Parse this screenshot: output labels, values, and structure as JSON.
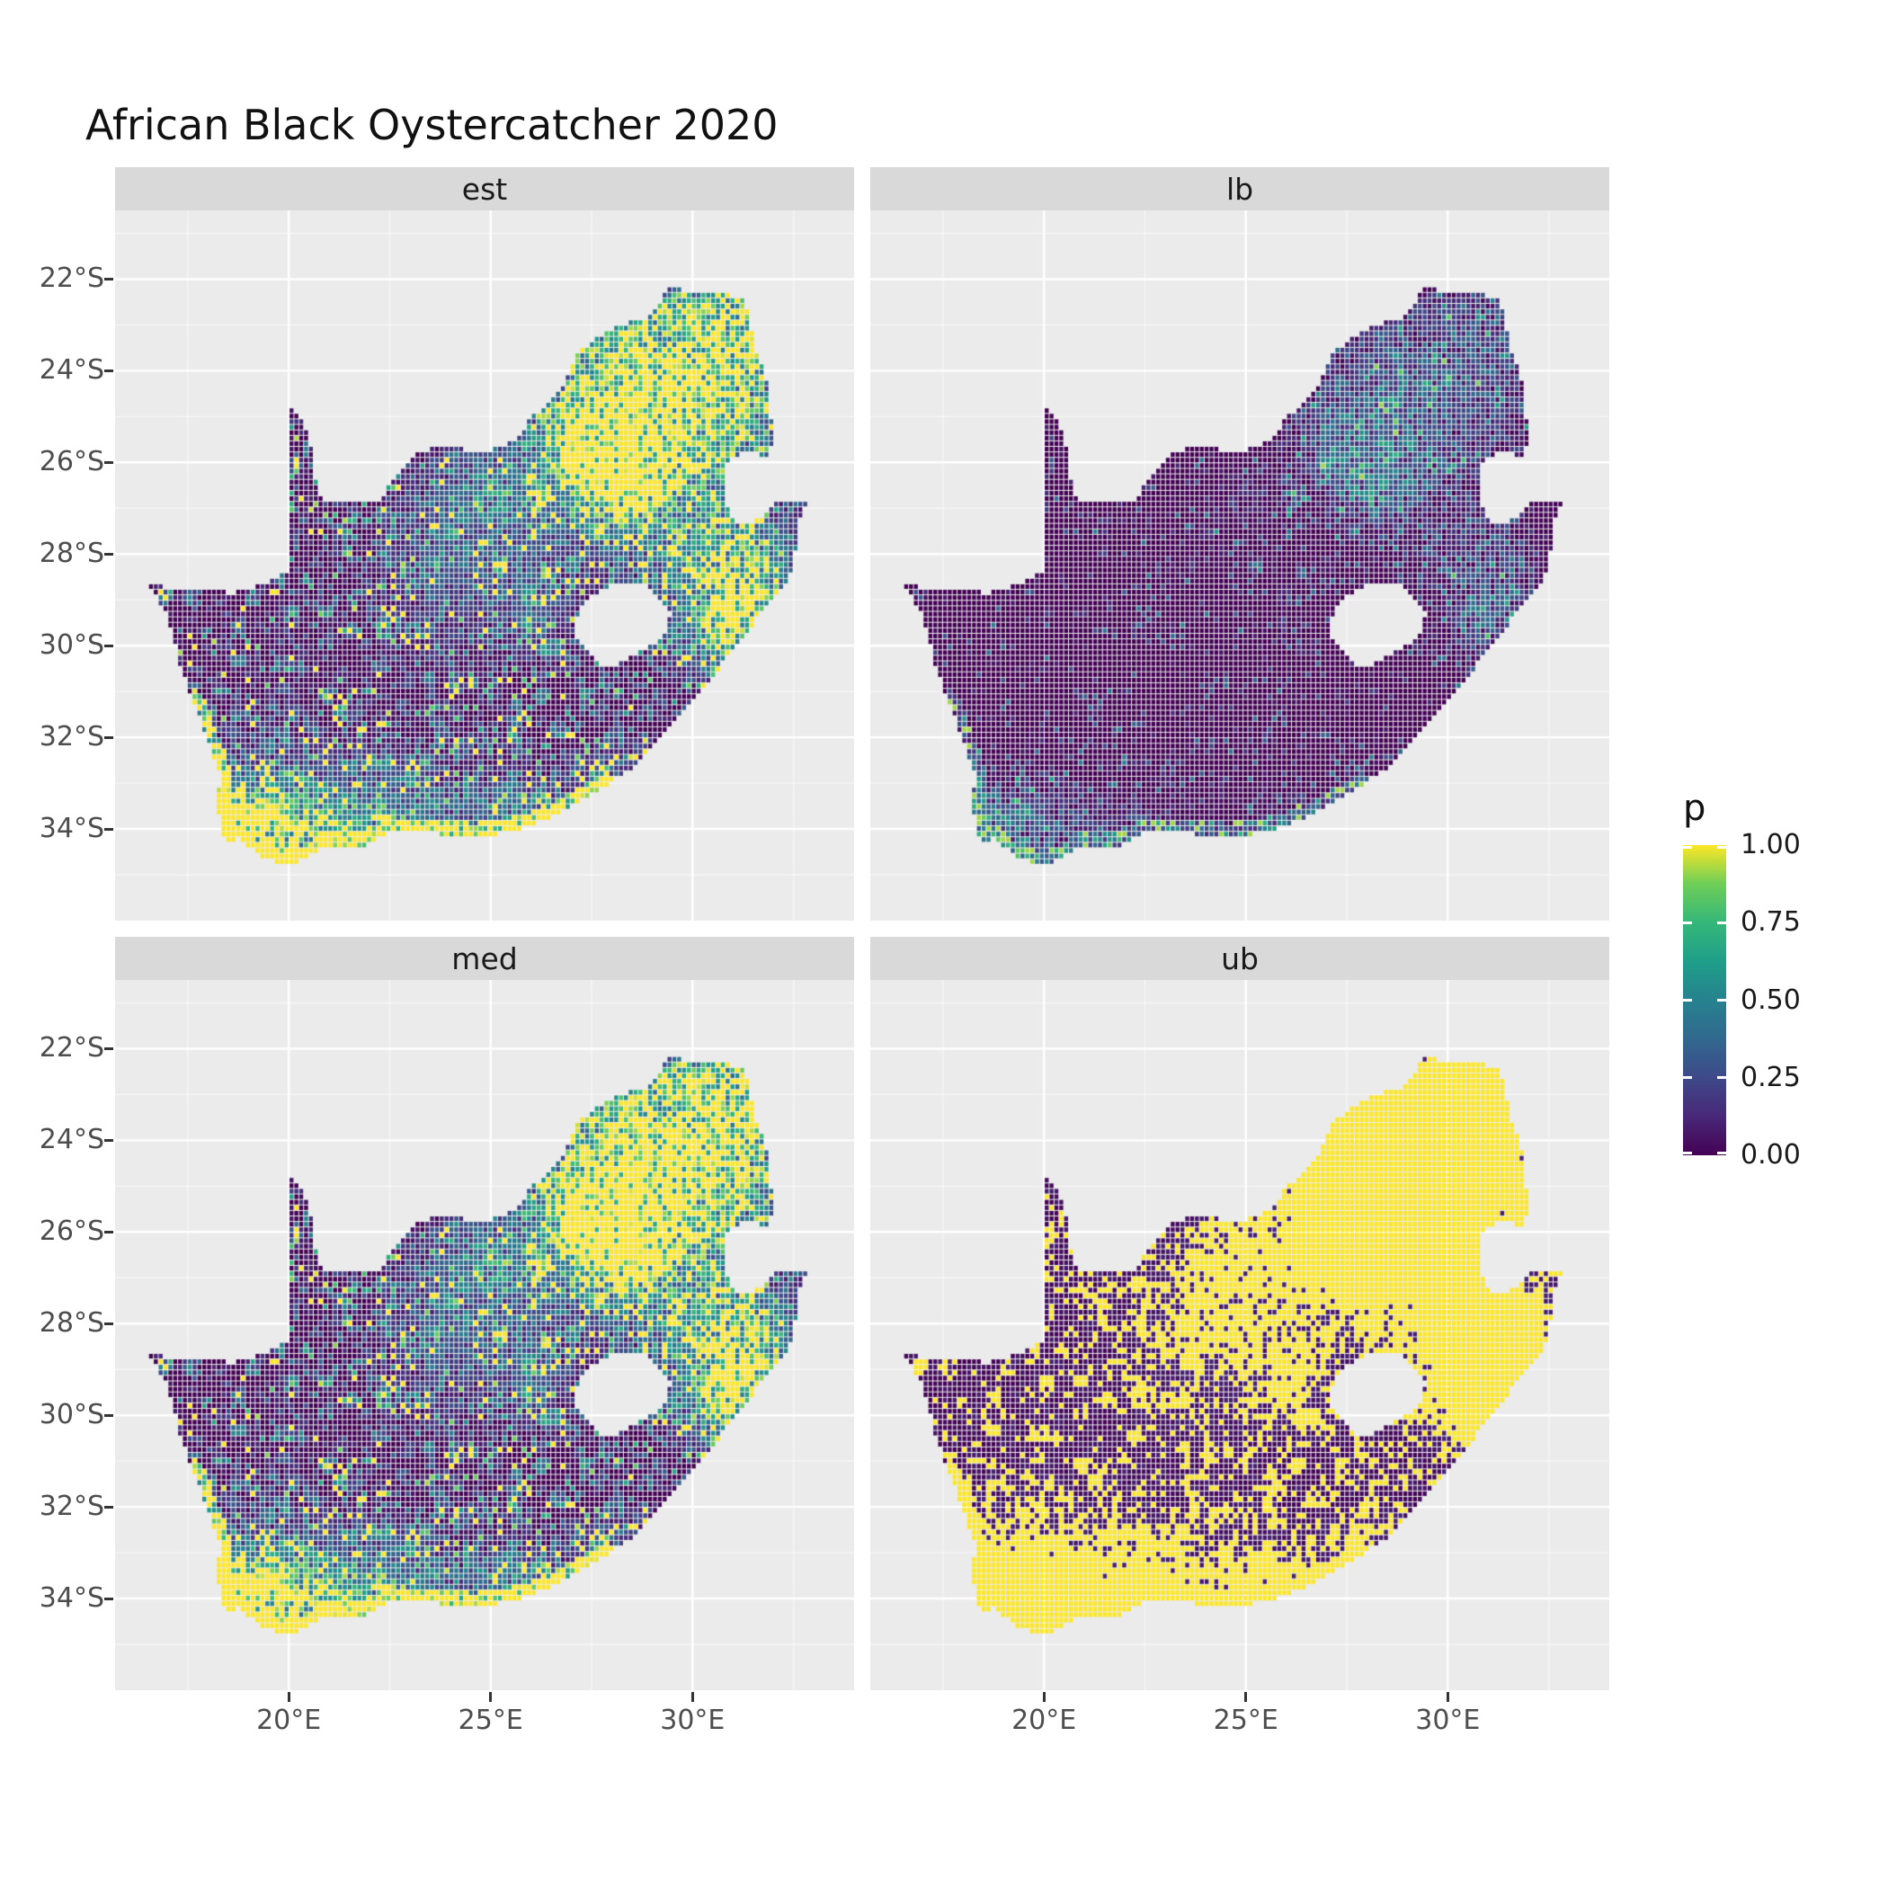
{
  "title": "African Black Oystercatcher 2020",
  "legend": {
    "title": "p",
    "entries": [
      {
        "value": 1.0,
        "label": "1.00"
      },
      {
        "value": 0.75,
        "label": "0.75"
      },
      {
        "value": 0.5,
        "label": "0.50"
      },
      {
        "value": 0.25,
        "label": "0.25"
      },
      {
        "value": 0.0,
        "label": "0.00"
      }
    ]
  },
  "chart_data": {
    "type": "heatmap",
    "title": "African Black Oystercatcher 2020",
    "map_region": "South Africa",
    "variable": "p",
    "facets": [
      {
        "id": "est",
        "label": "est"
      },
      {
        "id": "lb",
        "label": "lb"
      },
      {
        "id": "med",
        "label": "med"
      },
      {
        "id": "ub",
        "label": "ub"
      }
    ],
    "x_axis": {
      "range": [
        15.7,
        34.0
      ],
      "ticks": [
        {
          "value": 20,
          "label": "20°E"
        },
        {
          "value": 25,
          "label": "25°E"
        },
        {
          "value": 30,
          "label": "30°E"
        }
      ],
      "minor": [
        17.5,
        22.5,
        27.5,
        32.5
      ]
    },
    "y_axis": {
      "range": [
        20.5,
        36.0
      ],
      "ticks": [
        {
          "value": 22,
          "label": "22°S"
        },
        {
          "value": 24,
          "label": "24°S"
        },
        {
          "value": 26,
          "label": "26°S"
        },
        {
          "value": 28,
          "label": "28°S"
        },
        {
          "value": 30,
          "label": "30°S"
        },
        {
          "value": 32,
          "label": "32°S"
        },
        {
          "value": 34,
          "label": "34°S"
        }
      ],
      "minor": [
        21,
        23,
        25,
        27,
        29,
        31,
        33,
        35
      ]
    },
    "colorscale": {
      "name": "viridis",
      "domain": [
        0,
        1
      ],
      "stops": [
        {
          "t": 0.0,
          "c": "#440154"
        },
        {
          "t": 0.125,
          "c": "#482878"
        },
        {
          "t": 0.25,
          "c": "#3e4989"
        },
        {
          "t": 0.375,
          "c": "#31688e"
        },
        {
          "t": 0.5,
          "c": "#26828e"
        },
        {
          "t": 0.625,
          "c": "#1f9e89"
        },
        {
          "t": 0.75,
          "c": "#35b779"
        },
        {
          "t": 0.875,
          "c": "#6ece58"
        },
        {
          "t": 1.0,
          "c": "#fde725"
        }
      ]
    },
    "style": {
      "panel_bg": "#ebebeb",
      "grid": "#ffffff",
      "strip_bg": "#d9d9d9",
      "strip_text": "#1a1a1a",
      "axis_text": "#4d4d4d",
      "tick": "#333333"
    },
    "geo": {
      "south_africa": [
        [
          16.45,
          28.6
        ],
        [
          17.1,
          28.78
        ],
        [
          17.75,
          28.76
        ],
        [
          18.6,
          28.86
        ],
        [
          19.3,
          28.7
        ],
        [
          19.98,
          28.42
        ],
        [
          19.98,
          24.77
        ],
        [
          20.35,
          25.1
        ],
        [
          20.6,
          25.8
        ],
        [
          20.7,
          26.45
        ],
        [
          20.85,
          26.82
        ],
        [
          21.7,
          26.86
        ],
        [
          22.25,
          26.8
        ],
        [
          22.65,
          26.38
        ],
        [
          22.92,
          26.0
        ],
        [
          23.25,
          25.78
        ],
        [
          23.9,
          25.65
        ],
        [
          24.55,
          25.76
        ],
        [
          25.1,
          25.72
        ],
        [
          25.6,
          25.56
        ],
        [
          25.95,
          25.1
        ],
        [
          26.45,
          24.7
        ],
        [
          26.85,
          24.28
        ],
        [
          27.2,
          23.6
        ],
        [
          27.75,
          23.22
        ],
        [
          28.3,
          23.0
        ],
        [
          29.0,
          22.8
        ],
        [
          29.4,
          22.2
        ],
        [
          30.3,
          22.3
        ],
        [
          31.3,
          22.4
        ],
        [
          31.55,
          23.5
        ],
        [
          31.85,
          24.2
        ],
        [
          31.98,
          25.2
        ],
        [
          31.95,
          25.96
        ],
        [
          31.4,
          25.73
        ],
        [
          30.95,
          25.92
        ],
        [
          30.8,
          26.25
        ],
        [
          30.78,
          26.8
        ],
        [
          31.05,
          27.3
        ],
        [
          31.55,
          27.32
        ],
        [
          31.97,
          26.97
        ],
        [
          32.13,
          26.86
        ],
        [
          32.89,
          26.86
        ],
        [
          32.6,
          27.4
        ],
        [
          32.55,
          28.1
        ],
        [
          32.4,
          28.55
        ],
        [
          31.9,
          29.1
        ],
        [
          31.1,
          30.0
        ],
        [
          30.5,
          30.7
        ],
        [
          29.5,
          31.75
        ],
        [
          28.5,
          32.7
        ],
        [
          27.5,
          33.25
        ],
        [
          26.5,
          33.75
        ],
        [
          25.65,
          34.05
        ],
        [
          24.6,
          34.2
        ],
        [
          23.5,
          34.1
        ],
        [
          22.5,
          34.06
        ],
        [
          21.9,
          34.36
        ],
        [
          20.9,
          34.42
        ],
        [
          20.0,
          34.83
        ],
        [
          19.3,
          34.62
        ],
        [
          18.8,
          34.22
        ],
        [
          18.47,
          34.34
        ],
        [
          18.3,
          33.92
        ],
        [
          18.26,
          33.4
        ],
        [
          18.3,
          32.8
        ],
        [
          17.85,
          31.7
        ],
        [
          17.3,
          30.4
        ],
        [
          17.0,
          29.3
        ]
      ],
      "lesotho_hole": [
        [
          27.55,
          28.9
        ],
        [
          28.15,
          28.62
        ],
        [
          28.7,
          28.6
        ],
        [
          29.1,
          28.9
        ],
        [
          29.45,
          29.3
        ],
        [
          29.3,
          29.75
        ],
        [
          28.85,
          30.1
        ],
        [
          28.15,
          30.4
        ],
        [
          27.7,
          30.45
        ],
        [
          27.35,
          30.1
        ],
        [
          27.05,
          29.65
        ],
        [
          27.25,
          29.2
        ]
      ]
    },
    "raster": {
      "cell_deg": 0.12,
      "hotspots": [
        [
          28.05,
          26.05,
          0.9,
          1.25
        ],
        [
          27.8,
          25.0,
          1.4,
          0.65
        ],
        [
          29.2,
          23.6,
          1.5,
          0.6
        ],
        [
          30.8,
          24.6,
          1.2,
          0.55
        ],
        [
          31.0,
          22.9,
          1.0,
          0.5
        ],
        [
          30.3,
          27.6,
          1.4,
          0.45
        ],
        [
          31.0,
          29.0,
          1.0,
          0.45
        ],
        [
          30.9,
          29.85,
          0.6,
          0.6
        ],
        [
          26.2,
          29.12,
          0.5,
          0.35
        ],
        [
          25.0,
          26.8,
          1.2,
          0.3
        ],
        [
          24.0,
          28.5,
          1.5,
          0.22
        ],
        [
          18.65,
          33.9,
          0.75,
          1.0
        ],
        [
          19.8,
          34.4,
          1.1,
          0.7
        ],
        [
          21.5,
          34.2,
          1.2,
          0.45
        ],
        [
          23.3,
          34.0,
          0.9,
          0.4
        ],
        [
          25.6,
          33.9,
          0.7,
          0.55
        ],
        [
          27.9,
          33.0,
          0.6,
          0.4
        ],
        [
          31.6,
          28.6,
          0.7,
          0.45
        ]
      ],
      "facet_transforms": {
        "est": {
          "gain": 1.15,
          "bias": -0.06
        },
        "lb": {
          "gain": 0.45,
          "bias": -0.16
        },
        "med": {
          "gain": 1.25,
          "bias": -0.07
        },
        "ub": {
          "threshold": 0.24,
          "low_gain": 0.45
        }
      },
      "coast": {
        "boost_base": 0.45,
        "boost_rand": 0.9,
        "bright_chance": 0.86,
        "cap": 2.4
      }
    }
  }
}
